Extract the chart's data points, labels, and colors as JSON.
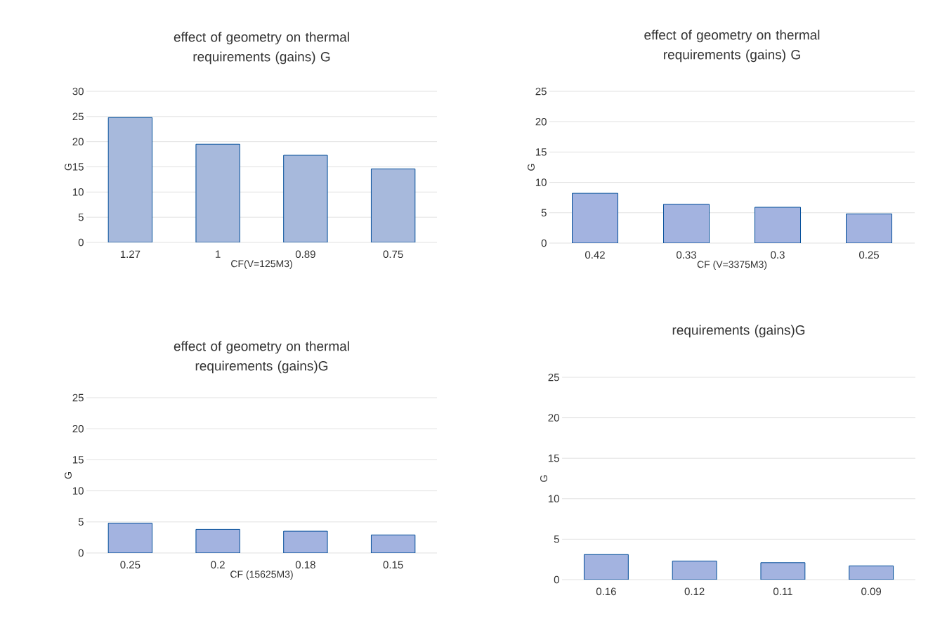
{
  "chart_data": [
    {
      "type": "bar",
      "title": "effect of geometry on thermal requirements (gains) G",
      "xlabel": "CF(V=125M3)",
      "ylabel": "G",
      "categories": [
        "1.27",
        "1",
        "0.89",
        "0.75"
      ],
      "values": [
        24.8,
        19.5,
        17.3,
        14.6
      ],
      "color": "#a7b9dc",
      "ylim": [
        0,
        30
      ],
      "yticks": [
        0,
        5,
        10,
        15,
        20,
        25,
        30
      ],
      "grid": "y"
    },
    {
      "type": "bar",
      "title": "effect of geometry on thermal requirements (gains) G",
      "xlabel": "CF (V=3375M3)",
      "ylabel": "G",
      "categories": [
        "0.42",
        "0.33",
        "0.3",
        "0.25"
      ],
      "values": [
        8.2,
        6.4,
        5.9,
        4.8
      ],
      "color": "#a3b3e0",
      "ylim": [
        0,
        25
      ],
      "yticks": [
        0,
        5,
        10,
        15,
        20,
        25
      ],
      "grid": "y"
    },
    {
      "type": "bar",
      "title": "effect of geometry on thermal requirements (gains)G",
      "xlabel": "CF (15625M3)",
      "ylabel": "G",
      "categories": [
        "0.25",
        "0.2",
        "0.18",
        "0.15"
      ],
      "values": [
        4.8,
        3.8,
        3.5,
        2.9
      ],
      "color": "#a3b3e0",
      "ylim": [
        0,
        25
      ],
      "yticks": [
        0,
        5,
        10,
        15,
        20,
        25
      ],
      "grid": "y"
    },
    {
      "type": "bar",
      "title": "requirements (gains)G",
      "ylabel": "G",
      "categories": [
        "0.16",
        "0.12",
        "0.11",
        "0.09"
      ],
      "values": [
        3.1,
        2.3,
        2.1,
        1.7
      ],
      "color": "#a3b3e0",
      "ylim": [
        0,
        25
      ],
      "yticks": [
        0,
        5,
        10,
        15,
        20,
        25
      ],
      "grid": "y"
    }
  ]
}
